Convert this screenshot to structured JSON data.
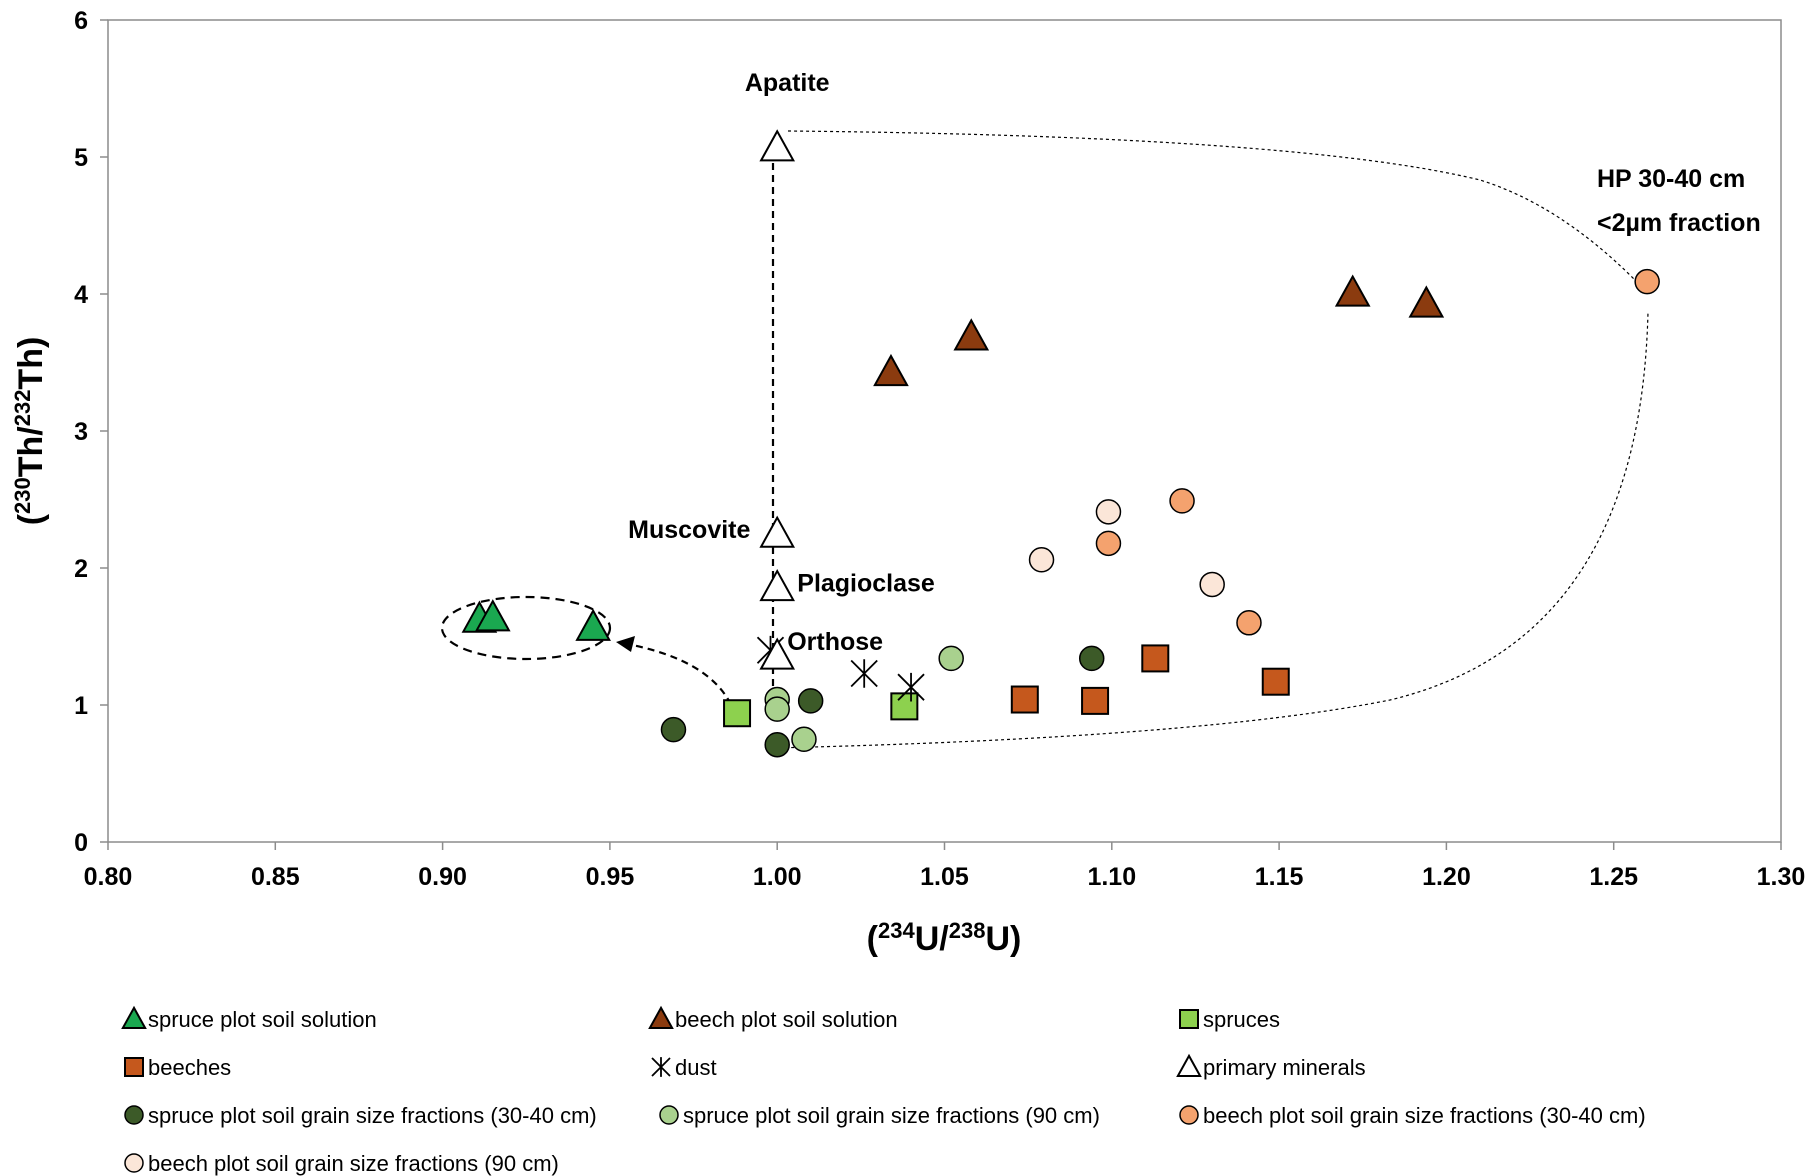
{
  "chart_data": {
    "type": "scatter",
    "xlabel": {
      "open": "(",
      "sup1": "234",
      "mid": "U/",
      "sup2": "238",
      "end": "U)"
    },
    "ylabel": {
      "open": "(",
      "sup1": "230",
      "mid": "Th/",
      "sup2": "232",
      "end": "Th)"
    },
    "xlim": [
      0.8,
      1.3
    ],
    "ylim": [
      0,
      6
    ],
    "xticks": [
      "0.80",
      "0.85",
      "0.90",
      "0.95",
      "1.00",
      "1.05",
      "1.10",
      "1.15",
      "1.20",
      "1.25",
      "1.30"
    ],
    "yticks": [
      "0",
      "1",
      "2",
      "3",
      "4",
      "5",
      "6"
    ],
    "grid": false,
    "legend_position": "bottom",
    "series": [
      {
        "name": "spruce plot soil solution",
        "marker": "triangle",
        "color": "#1aa850",
        "points": [
          [
            0.911,
            1.63
          ],
          [
            0.915,
            1.64
          ],
          [
            0.945,
            1.57
          ]
        ]
      },
      {
        "name": "beech plot soil solution",
        "marker": "triangle",
        "color": "#8b3b0f",
        "points": [
          [
            1.034,
            3.43
          ],
          [
            1.058,
            3.69
          ],
          [
            1.172,
            4.01
          ],
          [
            1.194,
            3.93
          ]
        ]
      },
      {
        "name": "spruces",
        "marker": "square",
        "color": "#8dd14e",
        "points": [
          [
            0.988,
            0.94
          ],
          [
            1.038,
            0.99
          ]
        ]
      },
      {
        "name": "beeches",
        "marker": "square",
        "color": "#c5581d",
        "points": [
          [
            1.074,
            1.04
          ],
          [
            1.095,
            1.03
          ],
          [
            1.113,
            1.34
          ],
          [
            1.149,
            1.17
          ]
        ]
      },
      {
        "name": "dust",
        "marker": "star",
        "color": "#000000",
        "points": [
          [
            0.998,
            1.4
          ],
          [
            1.026,
            1.23
          ],
          [
            1.04,
            1.13
          ]
        ]
      },
      {
        "name": "primary minerals",
        "marker": "open-triangle",
        "color": "#000000",
        "points": [
          [
            1.0,
            5.07
          ],
          [
            1.0,
            2.25
          ],
          [
            1.0,
            1.86
          ],
          [
            1.0,
            1.36
          ]
        ]
      },
      {
        "name": "spruce plot soil grain size fractions (30-40 cm)",
        "marker": "circle",
        "color": "#3c5a28",
        "points": [
          [
            0.969,
            0.82
          ],
          [
            1.0,
            0.71
          ],
          [
            1.01,
            1.03
          ],
          [
            1.094,
            1.34
          ]
        ]
      },
      {
        "name": "spruce plot soil grain size fractions (90 cm)",
        "marker": "circle",
        "color": "#a9d18e",
        "points": [
          [
            1.0,
            1.04
          ],
          [
            1.0,
            0.97
          ],
          [
            1.008,
            0.75
          ],
          [
            1.052,
            1.34
          ]
        ]
      },
      {
        "name": "beech plot soil grain size fractions (30-40 cm)",
        "marker": "circle",
        "color": "#f4a26e",
        "points": [
          [
            1.099,
            2.18
          ],
          [
            1.121,
            2.49
          ],
          [
            1.141,
            1.6
          ],
          [
            1.26,
            4.09
          ]
        ]
      },
      {
        "name": "beech plot soil grain size fractions (90 cm)",
        "marker": "circle",
        "color": "#fbe6d8",
        "points": [
          [
            1.079,
            2.06
          ],
          [
            1.099,
            2.41
          ],
          [
            1.13,
            1.88
          ]
        ]
      }
    ],
    "annotations": [
      {
        "text": "Apatite",
        "x": 1.003,
        "y": 5.48,
        "anchor": "middle"
      },
      {
        "text": "Muscovite",
        "x": 0.992,
        "y": 2.22,
        "anchor": "end"
      },
      {
        "text": "Plagioclase",
        "x": 1.006,
        "y": 1.83,
        "anchor": "start"
      },
      {
        "text": "Orthose",
        "x": 1.003,
        "y": 1.4,
        "anchor": "start"
      },
      {
        "text": "HP 30-40 cm",
        "x": 1.245,
        "y": 4.78,
        "anchor": "start"
      },
      {
        "text": "<2µm fraction",
        "x": 1.245,
        "y": 4.46,
        "anchor": "start"
      }
    ]
  }
}
